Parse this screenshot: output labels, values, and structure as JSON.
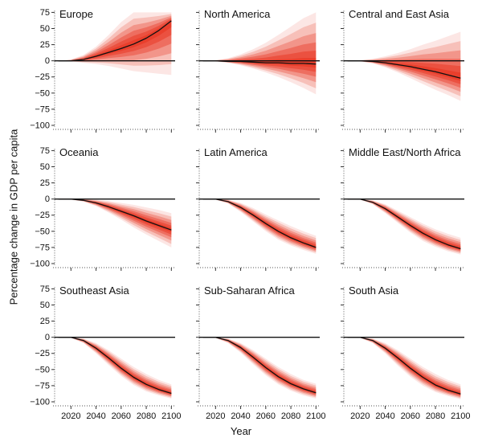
{
  "chart_data": {
    "type": "area",
    "description_note": "Small-multiple panels; solid black line = median projection, red fan = uncertainty band",
    "shared": {
      "xlabel": "Year",
      "ylabel": "Percentage change in GDP per capita",
      "xticks": [
        2020,
        2040,
        2060,
        2080,
        2100
      ],
      "xlim": [
        2007,
        2103
      ],
      "ylim": [
        -105,
        78
      ],
      "yticks": [
        75,
        50,
        25,
        0,
        -25,
        -50,
        -75,
        -100
      ],
      "ytick_labels": [
        "75",
        "50",
        "25",
        "0",
        "−25",
        "−50",
        "−75",
        "−100"
      ]
    },
    "panels": [
      {
        "title": "Europe",
        "fill_color": "#e8321e",
        "x": [
          2010,
          2020,
          2030,
          2040,
          2050,
          2060,
          2070,
          2080,
          2090,
          2100
        ],
        "median": [
          0,
          0,
          2,
          7,
          13,
          19,
          26,
          35,
          47,
          62
        ],
        "lower": [
          0,
          -1,
          -3,
          -5,
          -8,
          -12,
          -16,
          -18,
          -20,
          -22
        ],
        "upper": [
          0,
          2,
          9,
          22,
          40,
          60,
          75,
          75,
          75,
          75
        ]
      },
      {
        "title": "North America",
        "fill_color": "#e8321e",
        "x": [
          2010,
          2020,
          2030,
          2040,
          2050,
          2060,
          2070,
          2080,
          2090,
          2100
        ],
        "median": [
          0,
          0,
          -1,
          -1,
          -2,
          -3,
          -3,
          -4,
          -4,
          -5
        ],
        "lower": [
          0,
          -1,
          -3,
          -7,
          -12,
          -18,
          -25,
          -33,
          -42,
          -52
        ],
        "upper": [
          0,
          1,
          4,
          10,
          18,
          28,
          40,
          53,
          66,
          75
        ]
      },
      {
        "title": "Central and East Asia",
        "fill_color": "#e8321e",
        "x": [
          2010,
          2020,
          2030,
          2040,
          2050,
          2060,
          2070,
          2080,
          2090,
          2100
        ],
        "median": [
          0,
          0,
          -1,
          -3,
          -6,
          -9,
          -13,
          -17,
          -22,
          -27
        ],
        "lower": [
          0,
          -1,
          -4,
          -10,
          -18,
          -27,
          -36,
          -45,
          -53,
          -62
        ],
        "upper": [
          0,
          1,
          3,
          7,
          12,
          18,
          25,
          31,
          38,
          45
        ]
      },
      {
        "title": "Oceania",
        "fill_color": "#e8321e",
        "x": [
          2010,
          2020,
          2030,
          2040,
          2050,
          2060,
          2070,
          2080,
          2090,
          2100
        ],
        "median": [
          0,
          0,
          -2,
          -6,
          -12,
          -19,
          -26,
          -34,
          -41,
          -48
        ],
        "lower": [
          0,
          -1,
          -4,
          -11,
          -21,
          -32,
          -44,
          -55,
          -65,
          -75
        ],
        "upper": [
          0,
          0,
          0,
          -1,
          -3,
          -6,
          -9,
          -13,
          -17,
          -22
        ]
      },
      {
        "title": "Latin America",
        "fill_color": "#e8321e",
        "x": [
          2010,
          2020,
          2030,
          2040,
          2050,
          2060,
          2070,
          2080,
          2090,
          2100
        ],
        "median": [
          0,
          0,
          -4,
          -13,
          -25,
          -38,
          -50,
          -60,
          -68,
          -75
        ],
        "lower": [
          0,
          -1,
          -7,
          -20,
          -35,
          -50,
          -63,
          -72,
          -79,
          -85
        ],
        "upper": [
          0,
          0,
          -1,
          -6,
          -14,
          -24,
          -33,
          -42,
          -50,
          -57
        ]
      },
      {
        "title": "Middle East/North Africa",
        "fill_color": "#e8321e",
        "x": [
          2010,
          2020,
          2030,
          2040,
          2050,
          2060,
          2070,
          2080,
          2090,
          2100
        ],
        "median": [
          0,
          0,
          -5,
          -15,
          -28,
          -41,
          -53,
          -63,
          -71,
          -77
        ],
        "lower": [
          0,
          -1,
          -8,
          -22,
          -37,
          -52,
          -65,
          -74,
          -81,
          -86
        ],
        "upper": [
          0,
          0,
          -2,
          -8,
          -18,
          -28,
          -38,
          -47,
          -54,
          -60
        ]
      },
      {
        "title": "Southeast Asia",
        "fill_color": "#e8321e",
        "x": [
          2010,
          2020,
          2030,
          2040,
          2050,
          2060,
          2070,
          2080,
          2090,
          2100
        ],
        "median": [
          0,
          0,
          -5,
          -17,
          -32,
          -48,
          -62,
          -73,
          -81,
          -87
        ],
        "lower": [
          0,
          -1,
          -9,
          -25,
          -43,
          -60,
          -74,
          -84,
          -90,
          -95
        ],
        "upper": [
          0,
          0,
          -2,
          -9,
          -20,
          -33,
          -46,
          -57,
          -66,
          -73
        ]
      },
      {
        "title": "Sub-Saharan Africa",
        "fill_color": "#e8321e",
        "x": [
          2010,
          2020,
          2030,
          2040,
          2050,
          2060,
          2070,
          2080,
          2090,
          2100
        ],
        "median": [
          0,
          0,
          -5,
          -16,
          -31,
          -47,
          -61,
          -72,
          -80,
          -86
        ],
        "lower": [
          0,
          -1,
          -9,
          -24,
          -42,
          -59,
          -73,
          -83,
          -90,
          -95
        ],
        "upper": [
          0,
          0,
          -2,
          -9,
          -20,
          -33,
          -46,
          -57,
          -66,
          -72
        ]
      },
      {
        "title": "South Asia",
        "fill_color": "#e8321e",
        "x": [
          2010,
          2020,
          2030,
          2040,
          2050,
          2060,
          2070,
          2080,
          2090,
          2100
        ],
        "median": [
          0,
          0,
          -5,
          -17,
          -32,
          -48,
          -62,
          -74,
          -82,
          -88
        ],
        "lower": [
          0,
          -1,
          -9,
          -25,
          -44,
          -61,
          -75,
          -85,
          -91,
          -96
        ],
        "upper": [
          0,
          0,
          -2,
          -9,
          -20,
          -33,
          -46,
          -57,
          -66,
          -73
        ]
      }
    ]
  }
}
